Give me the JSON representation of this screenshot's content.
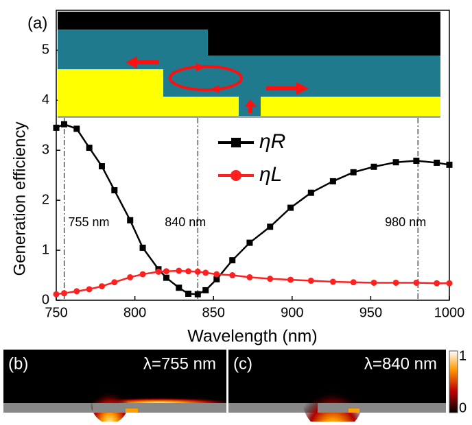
{
  "chart_data": {
    "type": "line",
    "panel_label": "(a)",
    "x_label": "Wavelength (nm)",
    "y_label": "Generation efficiency",
    "x": [
      750,
      755,
      763,
      771,
      779,
      787,
      797,
      805,
      815,
      820,
      828,
      834,
      840,
      845,
      852,
      862,
      873,
      886,
      899,
      912,
      926,
      939,
      952,
      966,
      979,
      992,
      1000
    ],
    "series": [
      {
        "name": "ηR",
        "color": "#000000",
        "marker": "square",
        "values": [
          3.45,
          3.52,
          3.43,
          3.05,
          2.68,
          2.2,
          1.6,
          1.05,
          0.62,
          0.45,
          0.25,
          0.13,
          0.12,
          0.2,
          0.42,
          0.8,
          1.15,
          1.47,
          1.85,
          2.15,
          2.38,
          2.56,
          2.67,
          2.76,
          2.79,
          2.75,
          2.71
        ]
      },
      {
        "name": "ηL",
        "color": "#ff2020",
        "marker": "circle",
        "values": [
          0.12,
          0.14,
          0.18,
          0.22,
          0.28,
          0.36,
          0.46,
          0.52,
          0.57,
          0.58,
          0.59,
          0.58,
          0.57,
          0.55,
          0.52,
          0.5,
          0.46,
          0.43,
          0.41,
          0.39,
          0.37,
          0.36,
          0.35,
          0.35,
          0.35,
          0.34,
          0.34
        ]
      }
    ],
    "xlim": [
      750,
      1000
    ],
    "xticks": [
      750,
      800,
      850,
      900,
      950,
      1000
    ],
    "ylim": [
      0,
      5.8
    ],
    "yticks": [
      0,
      1,
      2,
      3,
      4,
      5
    ],
    "annotations": [
      {
        "x": 755,
        "text": "755 nm"
      },
      {
        "x": 840,
        "text": "840 nm"
      },
      {
        "x": 980,
        "text": "980 nm"
      }
    ]
  },
  "panels": [
    {
      "label": "(b)",
      "text": "λ=755 nm"
    },
    {
      "label": "(c)",
      "text": "λ=840 nm"
    }
  ],
  "colorbar": {
    "max": "1",
    "min": "0"
  }
}
